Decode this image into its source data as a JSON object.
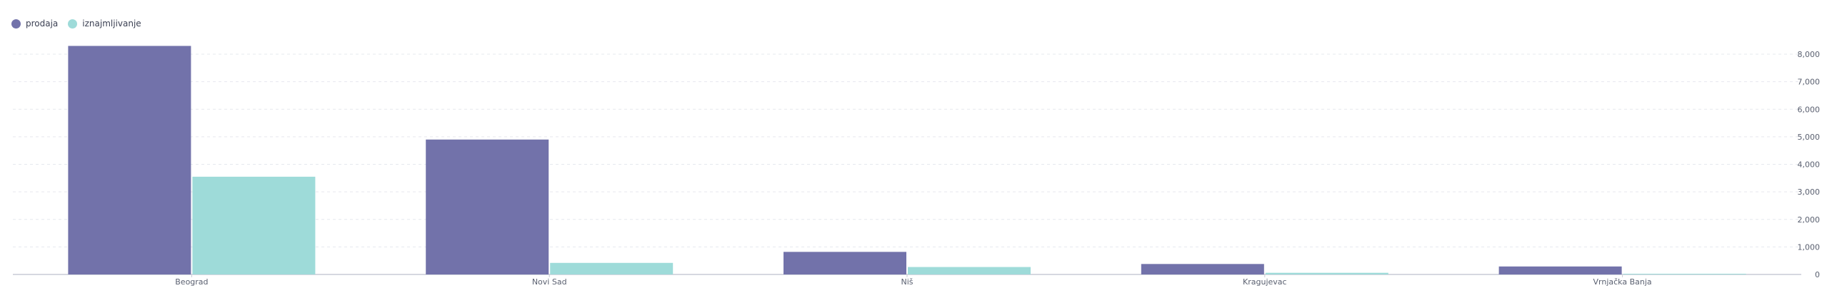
{
  "chart_data": {
    "type": "bar",
    "categories": [
      "Beograd",
      "Novi Sad",
      "Niš",
      "Kragujevac",
      "Vrnjačka Banja"
    ],
    "series": [
      {
        "name": "prodaja",
        "color": "#7272aa",
        "values": [
          8300,
          4900,
          820,
          380,
          290
        ]
      },
      {
        "name": "iznajmljivanje",
        "color": "#9edbd9",
        "values": [
          3550,
          420,
          270,
          60,
          25
        ]
      }
    ],
    "y_axis": {
      "position": "right",
      "ylim": [
        0,
        8000
      ],
      "ticks": [
        0,
        1000,
        2000,
        3000,
        4000,
        5000,
        6000,
        7000,
        8000
      ],
      "tick_labels": [
        "0",
        "1,000",
        "2,000",
        "3,000",
        "4,000",
        "5,000",
        "6,000",
        "7,000",
        "8,000"
      ]
    },
    "grid": true,
    "legend_position": "top-left",
    "title": "",
    "xlabel": "",
    "ylabel": ""
  }
}
